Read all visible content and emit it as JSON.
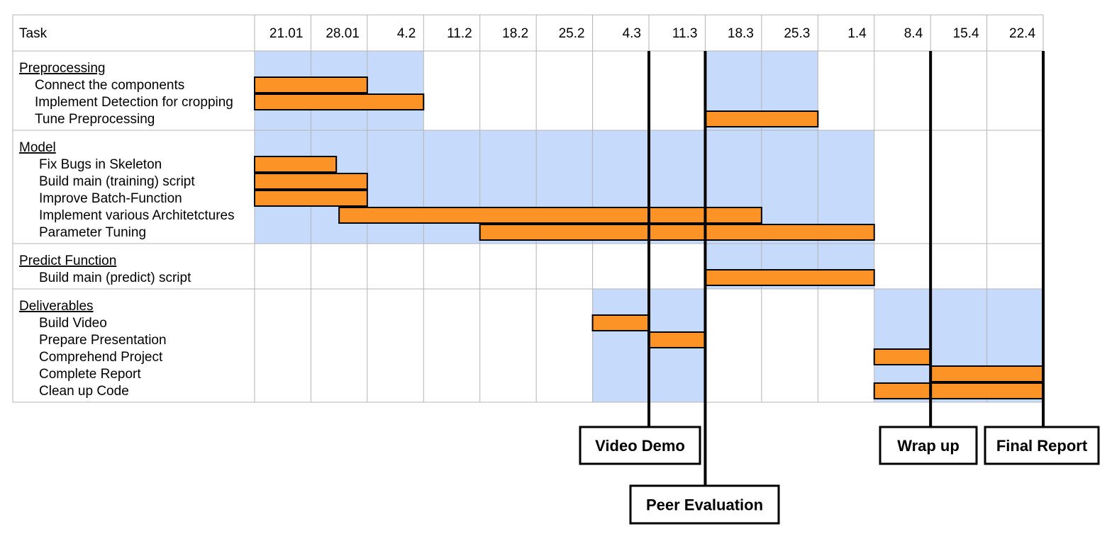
{
  "header": {
    "task_label": "Task"
  },
  "weeks": [
    "21.01",
    "28.01",
    "4.2",
    "11.2",
    "18.2",
    "25.2",
    "4.3",
    "11.3",
    "18.3",
    "25.3",
    "1.4",
    "8.4",
    "15.4",
    "22.4"
  ],
  "colors": {
    "bar_fill": "#fb9327",
    "shade": "#c6dafc",
    "grid": "#b4b4b4",
    "milestone_line": "#000000"
  },
  "groups": [
    {
      "label": "Preprocessing",
      "shaded_weeks": [
        0,
        1,
        2,
        8,
        9
      ],
      "tasks": [
        {
          "label": "Connect the components",
          "start": 0,
          "end": 2
        },
        {
          "label": "Implement Detection for cropping",
          "start": 0,
          "end": 3
        },
        {
          "label": "Tune Preprocessing",
          "start": 8,
          "end": 10
        }
      ]
    },
    {
      "label": "Model",
      "shaded_weeks": [
        0,
        1,
        2,
        3,
        4,
        5,
        6,
        7,
        8,
        9,
        10
      ],
      "tasks": [
        {
          "label": "Fix Bugs in Skeleton",
          "start": 0,
          "end": 1.45
        },
        {
          "label": "Build main (training) script",
          "start": 0,
          "end": 2
        },
        {
          "label": "Improve Batch-Function",
          "start": 0,
          "end": 2
        },
        {
          "label": "Implement various Architetctures",
          "start": 1.5,
          "end": 9
        },
        {
          "label": "Parameter Tuning",
          "start": 4,
          "end": 11
        }
      ]
    },
    {
      "label": "Predict Function",
      "shaded_weeks": [
        8,
        9,
        10
      ],
      "tasks": [
        {
          "label": "Build main (predict) script",
          "start": 8,
          "end": 11
        }
      ]
    },
    {
      "label": "Deliverables",
      "shaded_weeks": [
        6,
        7,
        11,
        12,
        13
      ],
      "tasks": [
        {
          "label": "Build Video",
          "start": 6,
          "end": 7
        },
        {
          "label": "Prepare Presentation",
          "start": 7,
          "end": 8
        },
        {
          "label": "Comprehend Project",
          "start": 11,
          "end": 12
        },
        {
          "label": "Complete Report",
          "start": 12,
          "end": 14
        },
        {
          "label": "Clean up Code",
          "start": 11,
          "end": 14
        }
      ]
    }
  ],
  "milestones": [
    {
      "label": "Video Demo",
      "at": 7
    },
    {
      "label": "Peer Evaluation",
      "at": 8
    },
    {
      "label": "Wrap up",
      "at": 12
    },
    {
      "label": "Final Report",
      "at": 14
    }
  ]
}
